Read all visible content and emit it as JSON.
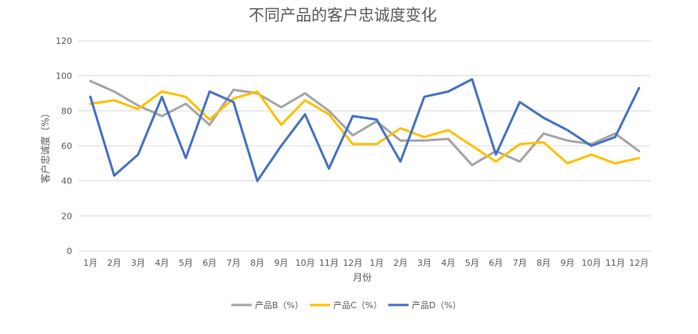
{
  "chart_data": {
    "type": "line",
    "title": "不同产品的客户忠诚度变化",
    "xlabel": "月份",
    "ylabel": "客户忠诚度（%）",
    "ylim": [
      0,
      120
    ],
    "yticks": [
      0,
      20,
      40,
      60,
      80,
      100,
      120
    ],
    "grid": true,
    "legend_position": "bottom",
    "categories": [
      "1月",
      "2月",
      "3月",
      "4月",
      "5月",
      "6月",
      "7月",
      "8月",
      "9月",
      "10月",
      "11月",
      "12月",
      "1月",
      "2月",
      "3月",
      "4月",
      "5月",
      "6月",
      "7月",
      "8月",
      "9月",
      "10月",
      "11月",
      "12月"
    ],
    "series": [
      {
        "name": "产品B（%）",
        "color": "#a5a5a5",
        "values": [
          97,
          91,
          83,
          77,
          84,
          72,
          92,
          90,
          82,
          90,
          80,
          66,
          74,
          63,
          63,
          64,
          49,
          57,
          51,
          67,
          63,
          61,
          67,
          57
        ]
      },
      {
        "name": "产品C（%）",
        "color": "#ffc000",
        "values": [
          84,
          86,
          81,
          91,
          88,
          75,
          87,
          91,
          72,
          86,
          78,
          61,
          61,
          70,
          65,
          69,
          60,
          51,
          61,
          62,
          50,
          55,
          50,
          53
        ]
      },
      {
        "name": "产品D（%）",
        "color": "#4472c4",
        "values": [
          88,
          43,
          55,
          88,
          53,
          91,
          85,
          40,
          60,
          78,
          47,
          77,
          75,
          51,
          88,
          91,
          98,
          55,
          85,
          76,
          69,
          60,
          65,
          93
        ]
      }
    ]
  }
}
